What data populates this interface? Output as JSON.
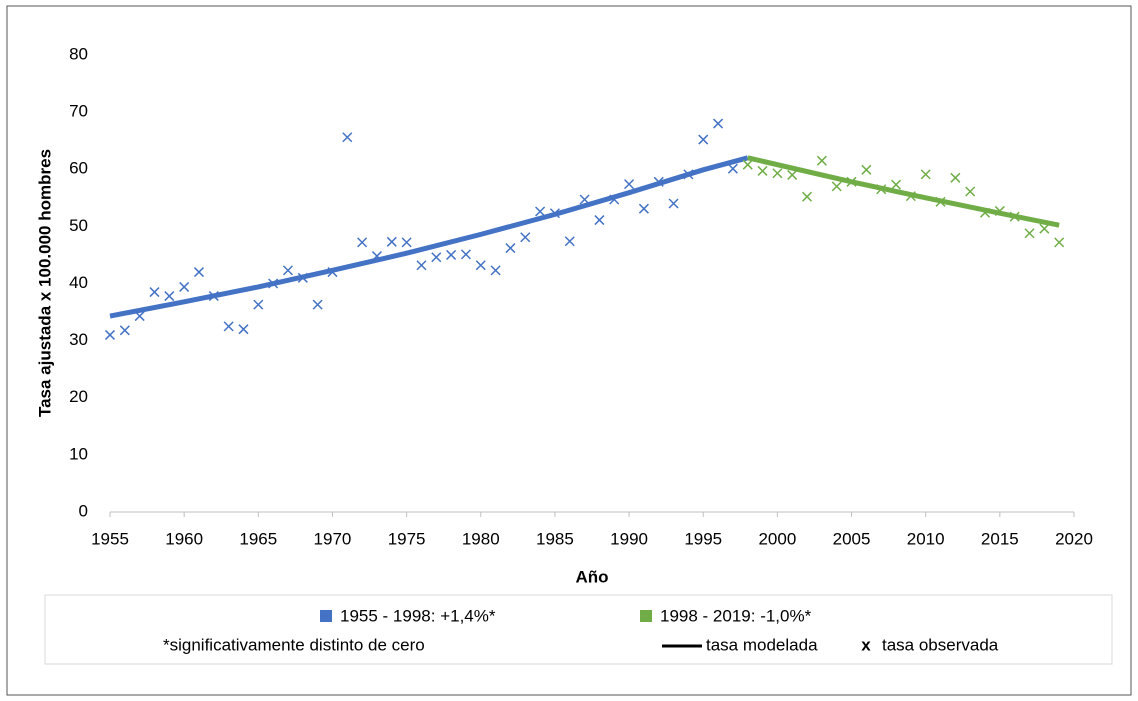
{
  "chart_data": {
    "type": "line",
    "x_label": "Año",
    "y_label": "Tasa ajustada x 100.000 hombres",
    "xlim": [
      1955,
      2020
    ],
    "xticks": [
      1955,
      1960,
      1965,
      1970,
      1975,
      1980,
      1985,
      1990,
      1995,
      2000,
      2005,
      2010,
      2015,
      2020
    ],
    "ylim": [
      0,
      80
    ],
    "yticks": [
      0,
      10,
      20,
      30,
      40,
      50,
      60,
      70,
      80
    ],
    "grid": false,
    "segments": [
      {
        "name": "1955 - 1998: +1,4%*",
        "color": "#4472c4",
        "modeled": {
          "x": [
            1955,
            1960,
            1965,
            1970,
            1975,
            1980,
            1985,
            1990,
            1995,
            1998
          ],
          "values": [
            34.3,
            36.8,
            39.4,
            42.3,
            45.3,
            48.6,
            52.1,
            55.9,
            59.9,
            62.0
          ]
        },
        "observed": {
          "x": [
            1955,
            1956,
            1957,
            1958,
            1959,
            1960,
            1961,
            1962,
            1963,
            1964,
            1965,
            1966,
            1967,
            1968,
            1969,
            1970,
            1971,
            1972,
            1973,
            1974,
            1975,
            1976,
            1977,
            1978,
            1979,
            1980,
            1981,
            1982,
            1983,
            1984,
            1985,
            1986,
            1987,
            1988,
            1989,
            1990,
            1991,
            1992,
            1993,
            1994,
            1995,
            1996,
            1997
          ],
          "values": [
            31,
            31.8,
            34.3,
            38.5,
            37.8,
            39.4,
            42,
            37.8,
            32.5,
            32,
            36.3,
            40,
            42.3,
            41,
            36.3,
            42,
            65.6,
            47.2,
            44.8,
            47.3,
            47.2,
            43.2,
            44.6,
            45,
            45.1,
            43.2,
            42.3,
            46.2,
            48.1,
            52.6,
            52.3,
            47.4,
            54.7,
            51.1,
            54.7,
            57.4,
            53.1,
            57.8,
            54,
            59.1,
            65.2,
            68,
            60.1
          ]
        }
      },
      {
        "name": "1998 - 2019: -1,0%*",
        "color": "#70ad47",
        "modeled": {
          "x": [
            1998,
            2005,
            2010,
            2015,
            2019
          ],
          "values": [
            62.0,
            57.8,
            55.0,
            52.3,
            50.2
          ]
        },
        "observed": {
          "x": [
            1998,
            1999,
            2000,
            2001,
            2002,
            2003,
            2004,
            2005,
            2006,
            2007,
            2008,
            2009,
            2010,
            2011,
            2012,
            2013,
            2014,
            2015,
            2016,
            2017,
            2018,
            2019
          ],
          "values": [
            60.8,
            59.7,
            59.3,
            59,
            55.2,
            61.5,
            57,
            57.8,
            59.9,
            56.5,
            57.3,
            55.3,
            59.1,
            54.3,
            58.5,
            56.1,
            52.4,
            52.7,
            51.7,
            48.8,
            49.6,
            47.2
          ]
        }
      }
    ],
    "footnote": "*significativamente distinto de cero",
    "legend_line_label": "tasa modelada",
    "legend_marker_symbol": "x",
    "legend_marker_label": "tasa observada"
  }
}
